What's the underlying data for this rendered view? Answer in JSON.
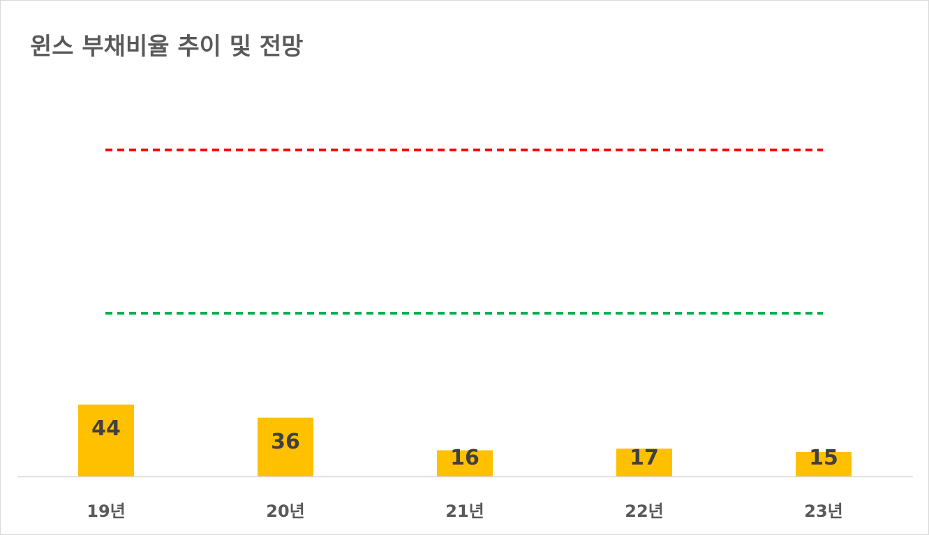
{
  "chart_data": {
    "type": "bar",
    "title": "윈스 부채비율 추이 및 전망",
    "categories": [
      "19년",
      "20년",
      "21년",
      "22년",
      "23년"
    ],
    "series": [
      {
        "values": [
          44,
          36,
          16,
          17,
          15
        ],
        "color": "#ffc000"
      }
    ],
    "reference_lines": [
      {
        "value": 200,
        "color": "#ff0000",
        "style": "dashed"
      },
      {
        "value": 100,
        "color": "#00b050",
        "style": "dashed"
      }
    ],
    "ylim": [
      0,
      280
    ],
    "grid": false,
    "legend": "none",
    "axis_color": "#d9d9d9"
  }
}
